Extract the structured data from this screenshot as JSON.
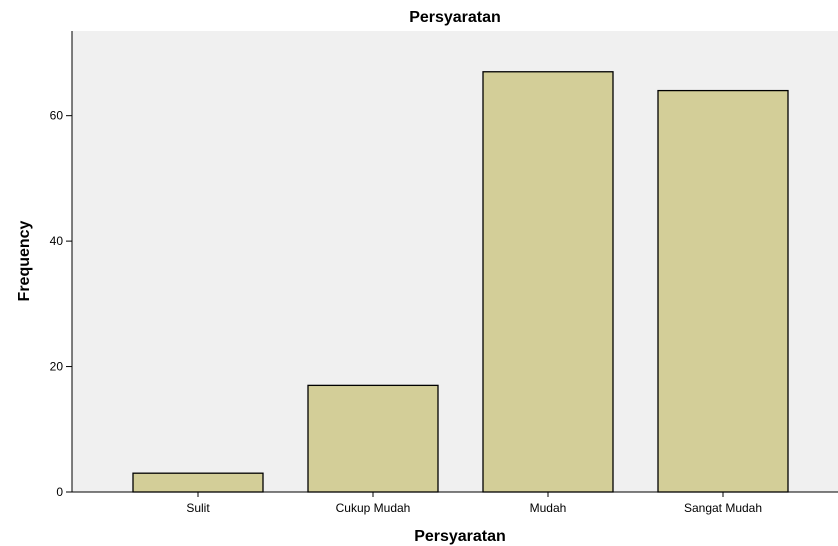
{
  "chart_data": {
    "type": "bar",
    "title": "Persyaratan",
    "xlabel": "Persyaratan",
    "ylabel": "Frequency",
    "categories": [
      "Sulit",
      "Cukup Mudah",
      "Mudah",
      "Sangat Mudah"
    ],
    "values": [
      3,
      17,
      67,
      64
    ],
    "ylim": [
      0,
      73.5
    ],
    "yticks": [
      0,
      20,
      40,
      60
    ],
    "grid": false,
    "colors": {
      "bar_fill": "#d3ce98",
      "bar_stroke": "#000000",
      "plot_background": "#f0f0f0",
      "axis": "#000000"
    }
  }
}
